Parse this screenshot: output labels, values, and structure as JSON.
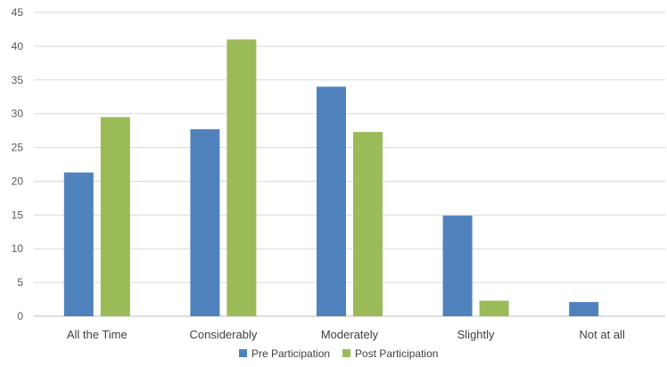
{
  "chart_data": {
    "type": "bar",
    "title": "",
    "xlabel": "",
    "ylabel": "",
    "categories": [
      "All the Time",
      "Considerably",
      "Moderately",
      "Slightly",
      "Not at all"
    ],
    "series": [
      {
        "name": "Pre Participation",
        "color": "#4f81bd",
        "values": [
          21.3,
          27.7,
          34.0,
          14.9,
          2.1
        ]
      },
      {
        "name": "Post Participation",
        "color": "#9bbb59",
        "values": [
          29.5,
          41.0,
          27.3,
          2.3,
          0
        ]
      }
    ],
    "ylim": [
      0,
      45
    ],
    "yticks": [
      0,
      5,
      10,
      15,
      20,
      25,
      30,
      35,
      40,
      45
    ],
    "grid": true,
    "legend_position": "bottom"
  }
}
